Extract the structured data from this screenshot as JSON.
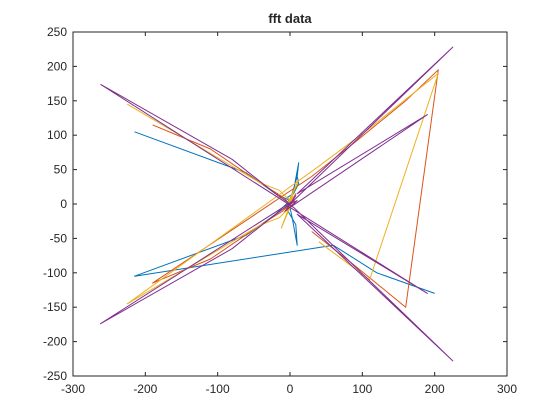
{
  "chart_data": {
    "type": "line",
    "title": "fft data",
    "xlabel": "",
    "ylabel": "",
    "xlim": [
      -300,
      300
    ],
    "ylim": [
      -250,
      250
    ],
    "xticks": [
      -300,
      -200,
      -100,
      0,
      100,
      200,
      300
    ],
    "yticks": [
      -250,
      -200,
      -150,
      -100,
      -50,
      0,
      50,
      100,
      150,
      200,
      250
    ],
    "grid": false,
    "legend": "none",
    "series": [
      {
        "color": "#0072BD",
        "x": [
          -215,
          -60,
          -20,
          0,
          10,
          12,
          5,
          -3,
          8,
          10,
          3,
          -3,
          5,
          12,
          10,
          0,
          -20,
          -60,
          -215,
          60,
          120,
          200
        ],
        "y": [
          105,
          45,
          15,
          5,
          40,
          60,
          20,
          -10,
          -30,
          -60,
          -20,
          10,
          15,
          30,
          40,
          5,
          -15,
          -45,
          -105,
          -60,
          -100,
          -130
        ]
      },
      {
        "color": "#D95319",
        "x": [
          -190,
          -110,
          -40,
          -10,
          0,
          8,
          -5,
          6,
          -8,
          0,
          -10,
          -40,
          -110,
          -190,
          30,
          90,
          160,
          205,
          160,
          90,
          30
        ],
        "y": [
          115,
          80,
          30,
          10,
          0,
          15,
          -8,
          5,
          -12,
          0,
          -10,
          -30,
          -80,
          -115,
          40,
          90,
          150,
          195,
          -150,
          -90,
          -40
        ]
      },
      {
        "color": "#EDB120",
        "x": [
          -225,
          -120,
          -40,
          -15,
          0,
          12,
          -6,
          4,
          -12,
          0,
          -15,
          -40,
          -120,
          -225,
          40,
          110,
          205,
          110,
          40
        ],
        "y": [
          145,
          80,
          30,
          20,
          5,
          35,
          -5,
          10,
          -35,
          -5,
          -20,
          -30,
          -80,
          -145,
          55,
          110,
          190,
          -110,
          -55
        ]
      },
      {
        "color": "#7E2F8E",
        "x": [
          -262,
          -80,
          -20,
          0,
          8,
          -6,
          10,
          0,
          -20,
          -80,
          -262,
          5,
          225,
          10,
          190,
          0,
          190,
          10,
          225,
          5,
          -262
        ],
        "y": [
          174,
          65,
          15,
          0,
          12,
          -10,
          5,
          0,
          -15,
          -65,
          -174,
          5,
          228,
          15,
          130,
          -5,
          -130,
          -15,
          -228,
          -5,
          174
        ]
      }
    ]
  }
}
